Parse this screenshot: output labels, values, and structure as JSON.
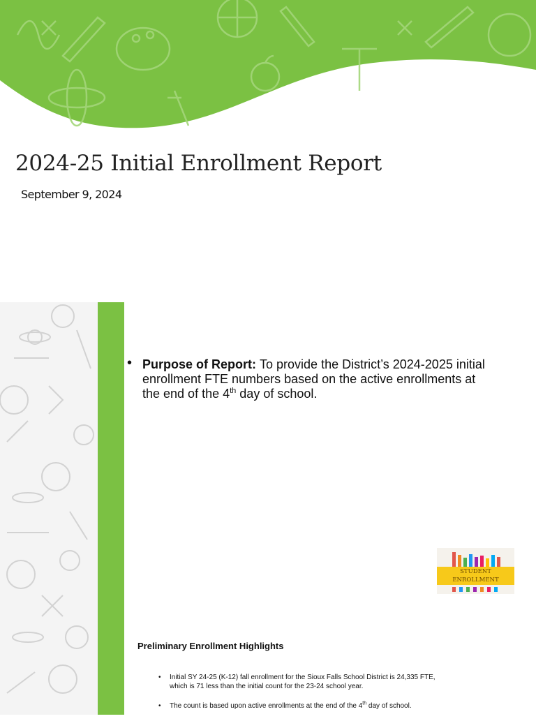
{
  "title": "2024-25 Initial Enrollment Report",
  "date": "September 9, 2024",
  "purpose": {
    "label": "Purpose of Report:",
    "text": "To provide the District’s 2024-2025 initial enrollment FTE numbers based on the active enrollments at the end of the 4",
    "sup": "th",
    "tail": " day of school."
  },
  "logo": {
    "lines": [
      "STUDENT",
      "ENROLLMENT"
    ]
  },
  "highlights": {
    "heading": "Preliminary Enrollment Highlights",
    "items": [
      {
        "text": "Initial SY 24-25 (K-12) fall enrollment for the Sioux Falls School District is 24,335 FTE, which is 71 less than the initial count for the 23-24 school year."
      },
      {
        "text": "The count is based upon active enrollments at the end of the 4",
        "sup": "th",
        "tail": " day of school."
      }
    ]
  }
}
